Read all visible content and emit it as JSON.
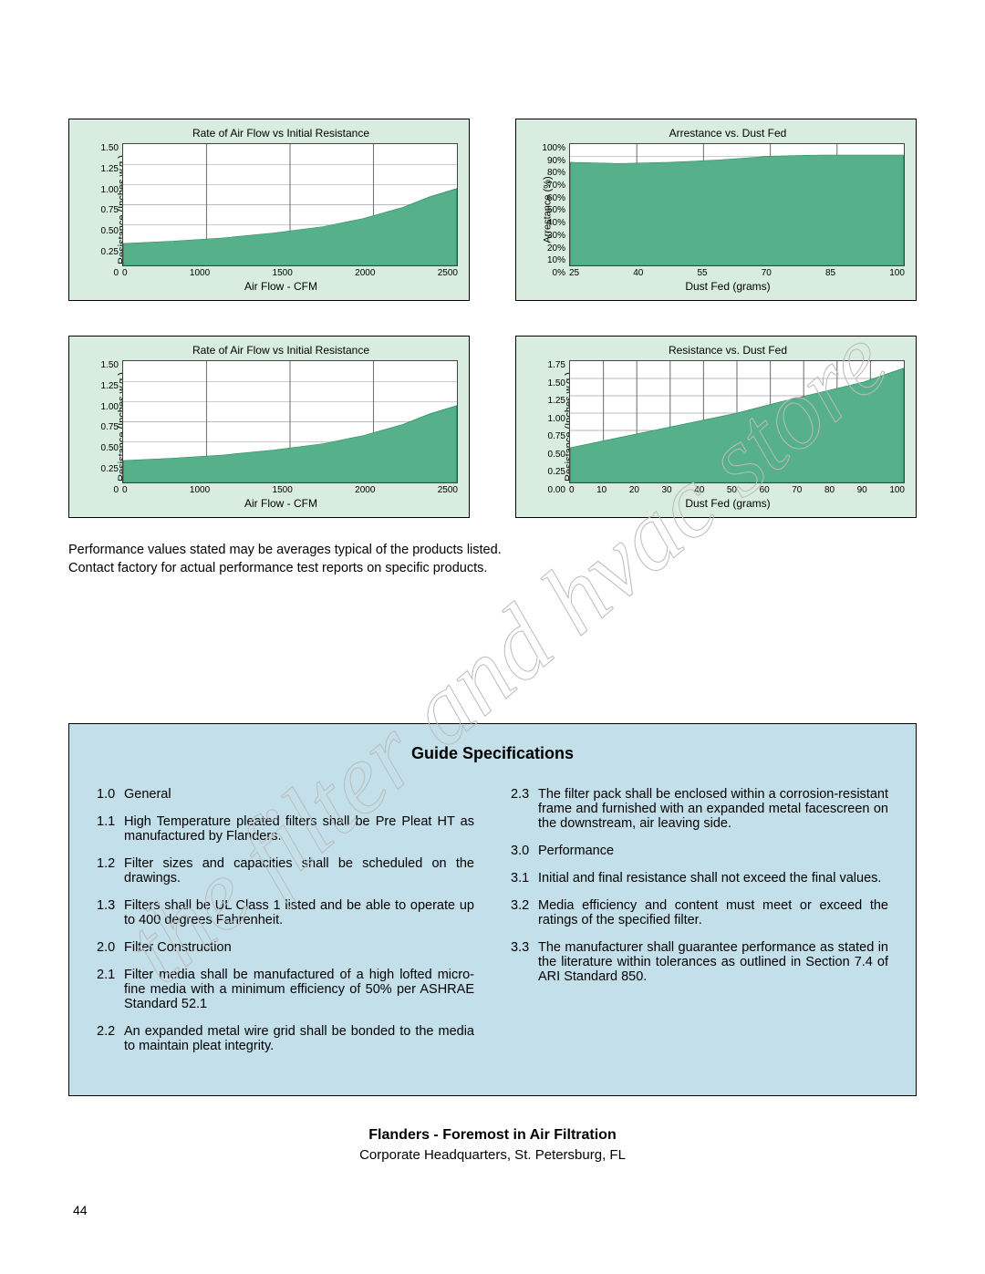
{
  "colors": {
    "chart_bg": "#d8ecdf",
    "area_fill": "#56b089",
    "grid": "#777777",
    "spec_bg": "#c3dfe9",
    "watermark": "#bbbbbb"
  },
  "charts": [
    {
      "title": "Rate of Air Flow vs Initial Resistance",
      "xlabel": "Air Flow  - CFM",
      "ylabel": "Resistance (Inches w.g.)",
      "yticks": [
        "1.50",
        "1.25",
        "1.00",
        "0.75",
        "0.50",
        "0.25",
        "0"
      ],
      "xticks": [
        "0",
        "1000",
        "1500",
        "2000",
        "2500"
      ],
      "ymax": 1.5,
      "points": [
        [
          0,
          0.27
        ],
        [
          0.15,
          0.3
        ],
        [
          0.3,
          0.34
        ],
        [
          0.45,
          0.4
        ],
        [
          0.6,
          0.48
        ],
        [
          0.72,
          0.58
        ],
        [
          0.84,
          0.72
        ],
        [
          0.92,
          0.85
        ],
        [
          1.0,
          0.95
        ]
      ]
    },
    {
      "title": "Arrestance vs. Dust Fed",
      "xlabel": "Dust Fed (grams)",
      "ylabel": "Arrestance (%)",
      "yticks": [
        "100%",
        "90%",
        "80%",
        "70%",
        "60%",
        "50%",
        "40%",
        "30%",
        "20%",
        "10%",
        "0%"
      ],
      "xticks": [
        "25",
        "40",
        "55",
        "70",
        "85",
        "100"
      ],
      "ymax": 100,
      "points": [
        [
          0,
          85
        ],
        [
          0.15,
          84
        ],
        [
          0.3,
          85
        ],
        [
          0.45,
          87
        ],
        [
          0.6,
          90
        ],
        [
          0.75,
          91
        ],
        [
          0.88,
          91
        ],
        [
          1.0,
          91
        ]
      ]
    },
    {
      "title": "Rate of Air Flow vs Initial Resistance",
      "xlabel": "Air Flow  - CFM",
      "ylabel": "Resistance (Inches w.g.)",
      "yticks": [
        "1.50",
        "1.25",
        "1.00",
        "0.75",
        "0.50",
        "0.25",
        "0"
      ],
      "xticks": [
        "0",
        "1000",
        "1500",
        "2000",
        "2500"
      ],
      "ymax": 1.5,
      "points": [
        [
          0,
          0.27
        ],
        [
          0.15,
          0.3
        ],
        [
          0.3,
          0.34
        ],
        [
          0.45,
          0.4
        ],
        [
          0.6,
          0.48
        ],
        [
          0.72,
          0.58
        ],
        [
          0.84,
          0.72
        ],
        [
          0.92,
          0.85
        ],
        [
          1.0,
          0.95
        ]
      ]
    },
    {
      "title": "Resistance vs. Dust Fed",
      "xlabel": "Dust Fed (grams)",
      "ylabel": "Resistance (Inches w.g.)",
      "yticks": [
        "1.75",
        "1.50",
        "1.25",
        "1.00",
        "0.75",
        "0.50",
        "0.25",
        "0.00"
      ],
      "xticks": [
        "0",
        "10",
        "20",
        "30",
        "40",
        "50",
        "60",
        "70",
        "80",
        "90",
        "100"
      ],
      "ymax": 1.75,
      "points": [
        [
          0,
          0.5
        ],
        [
          0.12,
          0.62
        ],
        [
          0.25,
          0.75
        ],
        [
          0.38,
          0.88
        ],
        [
          0.5,
          1.0
        ],
        [
          0.62,
          1.15
        ],
        [
          0.75,
          1.3
        ],
        [
          0.88,
          1.45
        ],
        [
          1.0,
          1.65
        ]
      ]
    }
  ],
  "perf_note_1": "Performance values stated may be averages typical of the products listed.",
  "perf_note_2": "Contact factory for actual performance test reports on specific products.",
  "spec": {
    "title": "Guide Specifications",
    "left": [
      {
        "n": "1.0",
        "t": "General"
      },
      {
        "n": "1.1",
        "t": "High Temperature pleated filters shall be Pre Pleat HT as manufactured by Flanders."
      },
      {
        "n": "1.2",
        "t": "Filter sizes and capacities shall be scheduled on the drawings."
      },
      {
        "n": "1.3",
        "t": "Filters shall be UL Class 1 listed and be able to operate up to 400 degrees Fahrenheit."
      },
      {
        "n": "2.0",
        "t": "Filter Construction"
      },
      {
        "n": "2.1",
        "t": "Filter media shall be manufactured of a high lofted micro-fine media with a minimum efficiency of 50% per ASHRAE Standard 52.1"
      },
      {
        "n": "2.2",
        "t": "An expanded metal wire grid shall be bonded to the media to maintain pleat integrity."
      }
    ],
    "right": [
      {
        "n": "2.3",
        "t": "The filter pack shall be enclosed within a corrosion-resistant frame and furnished with an expanded metal facescreen on the downstream, air leaving side."
      },
      {
        "n": "3.0",
        "t": "Performance"
      },
      {
        "n": "3.1",
        "t": "Initial and final resistance shall not exceed the final values."
      },
      {
        "n": "3.2",
        "t": "Media efficiency and content must meet or exceed the ratings of the specified filter."
      },
      {
        "n": "3.3",
        "t": "The manufacturer shall guarantee performance as stated in the literature within tolerances as outlined in Section 7.4 of ARI Standard 850."
      }
    ]
  },
  "footer": {
    "bold": "Flanders - Foremost in Air Filtration",
    "sub": "Corporate Headquarters, St. Petersburg, FL"
  },
  "page_num": "44",
  "watermark_text": "the filter and hvac store"
}
